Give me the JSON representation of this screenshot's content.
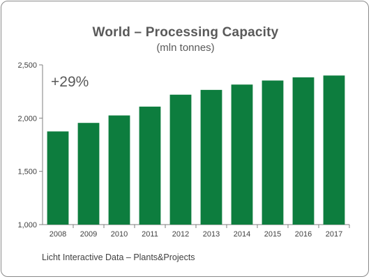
{
  "chart_data": {
    "type": "bar",
    "title": "World – Processing Capacity",
    "subtitle": "(mln tonnes)",
    "categories": [
      "2008",
      "2009",
      "2010",
      "2011",
      "2012",
      "2013",
      "2014",
      "2015",
      "2016",
      "2017"
    ],
    "values": [
      1875,
      1955,
      2025,
      2108,
      2220,
      2265,
      2315,
      2353,
      2383,
      2400
    ],
    "ylim": [
      1000,
      2500
    ],
    "yticks": [
      1000,
      1500,
      2000,
      2500
    ],
    "ytick_labels": [
      "1,000",
      "1,500",
      "2,000",
      "2,500"
    ],
    "annotation": "+29%",
    "grid": false,
    "colors": {
      "bar": "#0d7d3e",
      "text": "#595959",
      "axis": "#7f7f7f"
    }
  },
  "source_note": "Licht Interactive Data – Plants&Projects"
}
